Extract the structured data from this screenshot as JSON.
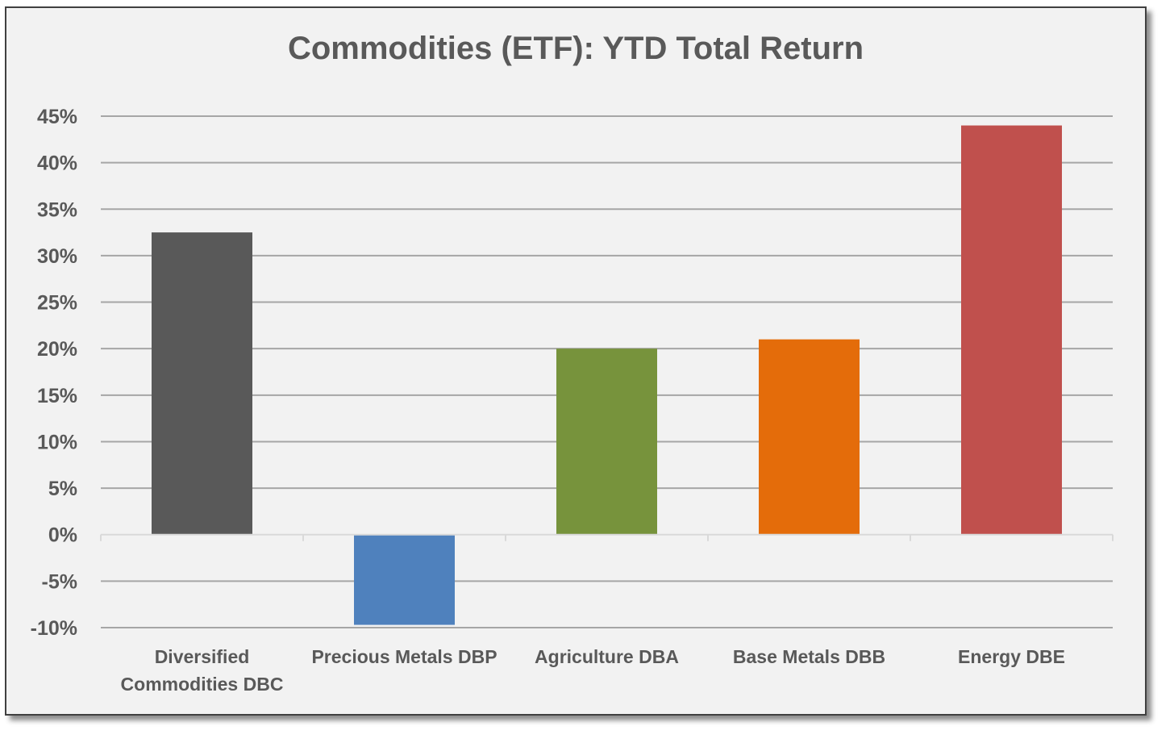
{
  "chart_data": {
    "type": "bar",
    "title": "Commodities (ETF): YTD Total Return",
    "xlabel": "",
    "ylabel": "",
    "categories": [
      [
        "Diversified",
        "Commodities DBC"
      ],
      [
        "Precious Metals DBP"
      ],
      [
        "Agriculture DBA"
      ],
      [
        "Base Metals DBB"
      ],
      [
        "Energy DBE"
      ]
    ],
    "values": [
      32.5,
      -9.7,
      20.0,
      21.0,
      44.0
    ],
    "bar_colors": [
      "#595959",
      "#4f81bd",
      "#77933c",
      "#e46c0a",
      "#c0504d"
    ],
    "ylim": [
      -10,
      45
    ],
    "yticks": [
      -10,
      -5,
      0,
      5,
      10,
      15,
      20,
      25,
      30,
      35,
      40,
      45
    ],
    "ytick_labels": [
      "-10%",
      "-5%",
      "0%",
      "5%",
      "10%",
      "15%",
      "20%",
      "25%",
      "30%",
      "35%",
      "40%",
      "45%"
    ],
    "grid": true,
    "legend": "none",
    "colors": {
      "background": "#f2f2f2",
      "gridline": "#a6a6a6",
      "text": "#595959"
    }
  }
}
